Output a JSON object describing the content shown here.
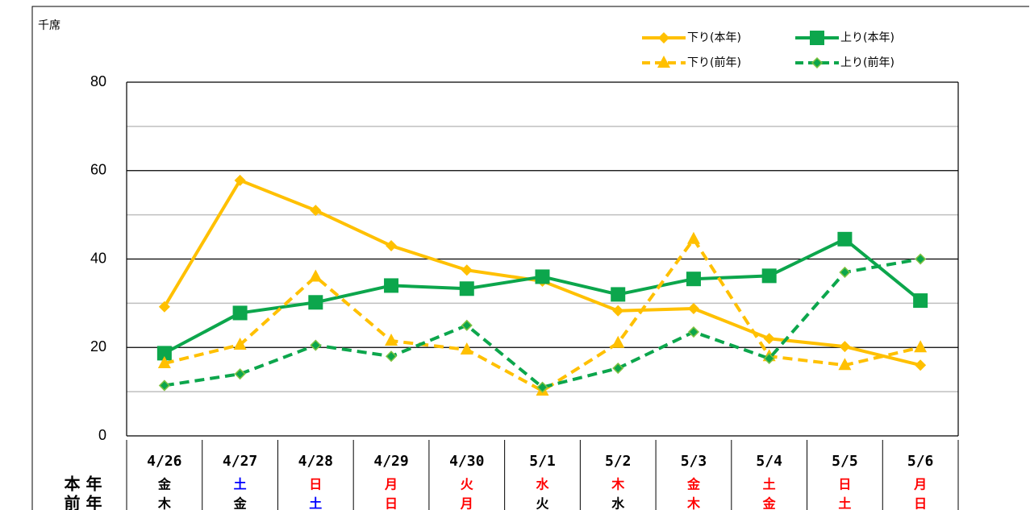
{
  "chart_data": {
    "type": "line",
    "unit_label": "千席",
    "categories": [
      "4/26",
      "4/27",
      "4/28",
      "4/29",
      "4/30",
      "5/1",
      "5/2",
      "5/3",
      "5/4",
      "5/5",
      "5/6"
    ],
    "ylim": [
      0,
      80
    ],
    "yticks": [
      0,
      20,
      40,
      60,
      80
    ],
    "minor_yticks": [
      10,
      30,
      50,
      70
    ],
    "grid": true,
    "legend": "top-right",
    "series": [
      {
        "name": "下り(本年)",
        "color": "#ffc000",
        "dashed": false,
        "marker": "diamond",
        "values": [
          29.2,
          57.8,
          51,
          43,
          37.5,
          35,
          28.3,
          28.8,
          22,
          20.2,
          16
        ]
      },
      {
        "name": "上り(本年)",
        "color": "#0ca64c",
        "dashed": false,
        "marker": "square",
        "values": [
          18.7,
          27.8,
          30.2,
          34,
          33.3,
          36,
          32,
          35.5,
          36.2,
          44.5,
          30.6
        ]
      },
      {
        "name": "下り(前年)",
        "color": "#ffc000",
        "dashed": true,
        "marker": "triangle",
        "values": [
          16.4,
          20.6,
          36,
          21.5,
          19.5,
          10.2,
          21,
          44.5,
          18,
          16,
          20
        ]
      },
      {
        "name": "上り(前年)",
        "color": "#0ca64c",
        "dashed": true,
        "marker": "small-diamond",
        "values": [
          11.4,
          14,
          20.5,
          18,
          25,
          11,
          15.3,
          23.5,
          17.5,
          37,
          40
        ]
      }
    ],
    "weekday_rows": [
      {
        "label": "本 年",
        "days": [
          "金",
          "土",
          "日",
          "月",
          "火",
          "水",
          "木",
          "金",
          "土",
          "日",
          "月"
        ],
        "colors": [
          "#000000",
          "#0000ff",
          "#ff0000",
          "#ff0000",
          "#ff0000",
          "#ff0000",
          "#ff0000",
          "#ff0000",
          "#ff0000",
          "#ff0000",
          "#ff0000"
        ]
      },
      {
        "label": "前 年",
        "days": [
          "木",
          "金",
          "土",
          "日",
          "月",
          "火",
          "水",
          "木",
          "金",
          "土",
          "日"
        ],
        "colors": [
          "#000000",
          "#000000",
          "#0000ff",
          "#ff0000",
          "#ff0000",
          "#000000",
          "#000000",
          "#ff0000",
          "#ff0000",
          "#ff0000",
          "#ff0000"
        ]
      }
    ]
  }
}
